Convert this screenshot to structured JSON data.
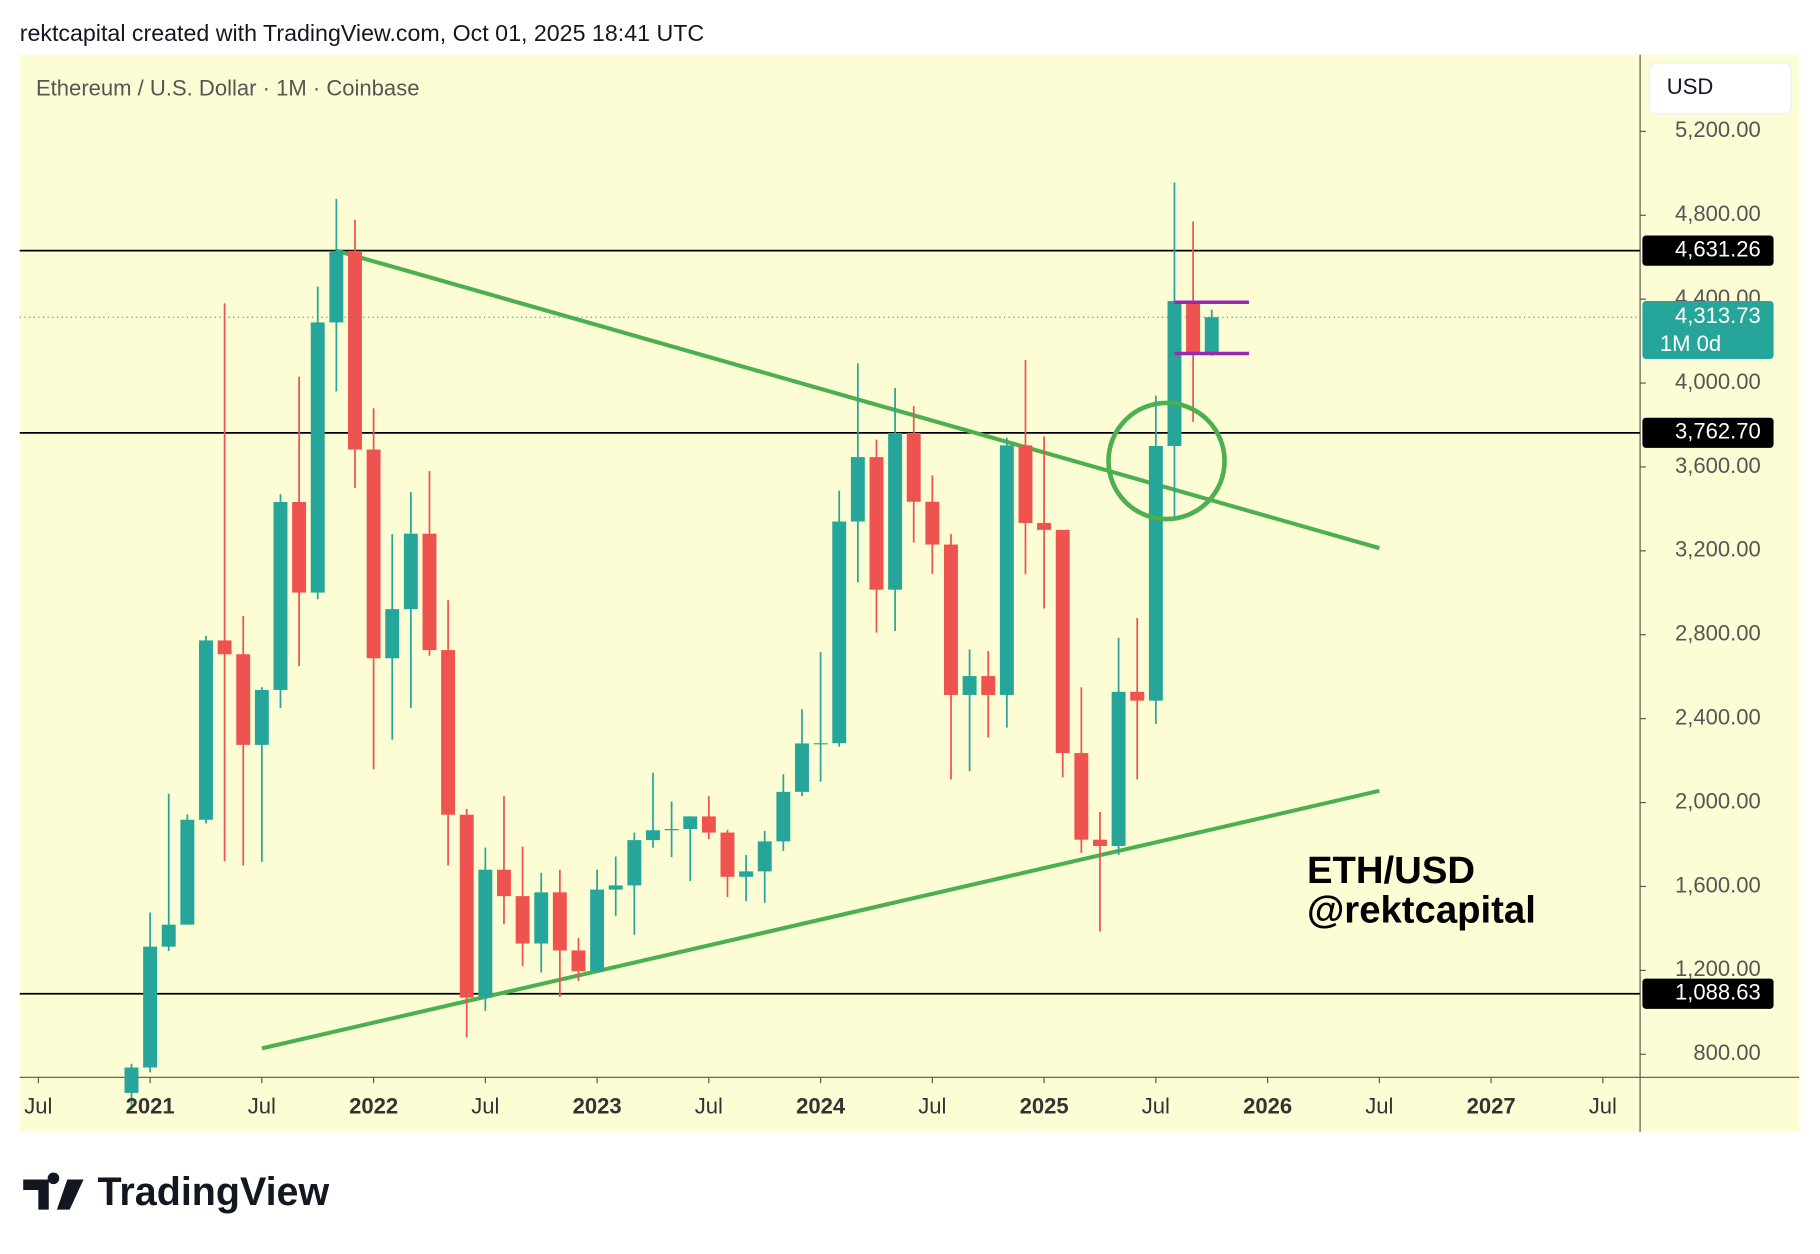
{
  "header": "rektcapital created with TradingView.com, Oct 01, 2025 18:41 UTC",
  "footer_logo": "TradingView",
  "chart_data": {
    "type": "candlestick",
    "title": "Ethereum / U.S. Dollar · 1M · Coinbase",
    "currency": "USD",
    "annotation": [
      "ETH/USD",
      "@rektcapital"
    ],
    "up_color": "#26a69a",
    "down_color": "#ef5350",
    "x": [
      "2020-12",
      "2021-01",
      "2021-02",
      "2021-03",
      "2021-04",
      "2021-05",
      "2021-06",
      "2021-07",
      "2021-08",
      "2021-09",
      "2021-10",
      "2021-11",
      "2021-12",
      "2022-01",
      "2022-02",
      "2022-03",
      "2022-04",
      "2022-05",
      "2022-06",
      "2022-07",
      "2022-08",
      "2022-09",
      "2022-10",
      "2022-11",
      "2022-12",
      "2023-01",
      "2023-02",
      "2023-03",
      "2023-04",
      "2023-05",
      "2023-06",
      "2023-07",
      "2023-08",
      "2023-09",
      "2023-10",
      "2023-11",
      "2023-12",
      "2024-01",
      "2024-02",
      "2024-03",
      "2024-04",
      "2024-05",
      "2024-06",
      "2024-07",
      "2024-08",
      "2024-09",
      "2024-10",
      "2024-11",
      "2024-12",
      "2025-01",
      "2025-02",
      "2025-03",
      "2025-04",
      "2025-05",
      "2025-06",
      "2025-07",
      "2025-08",
      "2025-09",
      "2025-10"
    ],
    "open": [
      616,
      737,
      1313,
      1418,
      1918,
      2773,
      2707,
      2275,
      2537,
      3433,
      3001,
      4289,
      4630,
      3683,
      2688,
      2922,
      3282,
      2727,
      1942,
      1070,
      1680,
      1554,
      1328,
      1572,
      1295,
      1196,
      1585,
      1605,
      1821,
      1868,
      1874,
      1934,
      1857,
      1646,
      1672,
      1815,
      2051,
      2282,
      2283,
      3340,
      3647,
      3015,
      3762,
      3434,
      3230,
      2513,
      2603,
      2513,
      3703,
      3333,
      3300,
      2236,
      1823,
      1793,
      2528,
      2486,
      3700,
      4391,
      4145
    ],
    "high": [
      755,
      1476,
      2042,
      1943,
      2795,
      4380,
      2890,
      2550,
      3470,
      4030,
      4460,
      4878,
      4778,
      3880,
      3280,
      3480,
      3580,
      2965,
      1970,
      1785,
      2030,
      1790,
      1665,
      1680,
      1354,
      1680,
      1743,
      1857,
      2142,
      2005,
      1935,
      2030,
      1870,
      1750,
      1865,
      2135,
      2445,
      2717,
      3487,
      4094,
      3730,
      3977,
      3890,
      3560,
      3280,
      2730,
      2722,
      3740,
      4110,
      3745,
      3300,
      2550,
      1955,
      2785,
      2880,
      3940,
      4956,
      4770,
      4350
    ],
    "low": [
      535,
      714,
      1293,
      1420,
      1900,
      1720,
      1700,
      1718,
      2450,
      2650,
      2970,
      3960,
      3500,
      2159,
      2300,
      2450,
      2700,
      1700,
      880,
      1007,
      1420,
      1220,
      1190,
      1073,
      1150,
      1190,
      1460,
      1370,
      1785,
      1740,
      1626,
      1826,
      1550,
      1530,
      1522,
      1770,
      2030,
      2100,
      2267,
      3050,
      2810,
      2818,
      3240,
      3090,
      2110,
      2150,
      2310,
      2357,
      3088,
      2925,
      2120,
      1760,
      1385,
      1750,
      2110,
      2375,
      3355,
      3815,
      4130
    ],
    "close": [
      737,
      1313,
      1418,
      1918,
      2773,
      2707,
      2275,
      2537,
      3433,
      3001,
      4289,
      4630,
      3683,
      2688,
      2922,
      3282,
      2727,
      1942,
      1070,
      1680,
      1554,
      1328,
      1572,
      1295,
      1196,
      1585,
      1605,
      1821,
      1868,
      1874,
      1934,
      1857,
      1646,
      1672,
      1815,
      2051,
      2282,
      2283,
      3340,
      3647,
      3015,
      3762,
      3434,
      3230,
      2513,
      2603,
      2513,
      3703,
      3333,
      3300,
      2236,
      1823,
      1793,
      2528,
      2486,
      3700,
      4391,
      4145,
      4313.73
    ],
    "xlim": [
      "2020-06",
      "2027-09"
    ],
    "xticks": [
      {
        "value": "2020-07",
        "label": "Jul"
      },
      {
        "value": "2021-01",
        "label": "2021"
      },
      {
        "value": "2021-07",
        "label": "Jul"
      },
      {
        "value": "2022-01",
        "label": "2022"
      },
      {
        "value": "2022-07",
        "label": "Jul"
      },
      {
        "value": "2023-01",
        "label": "2023"
      },
      {
        "value": "2023-07",
        "label": "Jul"
      },
      {
        "value": "2024-01",
        "label": "2024"
      },
      {
        "value": "2024-07",
        "label": "Jul"
      },
      {
        "value": "2025-01",
        "label": "2025"
      },
      {
        "value": "2025-07",
        "label": "Jul"
      },
      {
        "value": "2026-01",
        "label": "2026"
      },
      {
        "value": "2026-07",
        "label": "Jul"
      },
      {
        "value": "2027-01",
        "label": "2027"
      },
      {
        "value": "2027-07",
        "label": "Jul"
      }
    ],
    "ylim": [
      690,
      5565
    ],
    "yticks": [
      {
        "value": 800,
        "label": "800.00"
      },
      {
        "value": 1200,
        "label": "1,200.00"
      },
      {
        "value": 1600,
        "label": "1,600.00"
      },
      {
        "value": 2000,
        "label": "2,000.00"
      },
      {
        "value": 2400,
        "label": "2,400.00"
      },
      {
        "value": 2800,
        "label": "2,800.00"
      },
      {
        "value": 3200,
        "label": "3,200.00"
      },
      {
        "value": 3600,
        "label": "3,600.00"
      },
      {
        "value": 4000,
        "label": "4,000.00"
      },
      {
        "value": 4400,
        "label": "4,400.00"
      },
      {
        "value": 4800,
        "label": "4,800.00"
      },
      {
        "value": 5200,
        "label": "5,200.00"
      }
    ],
    "levels": [
      {
        "value": 4631.26,
        "label": "4,631.26"
      },
      {
        "value": 3762.7,
        "label": "3,762.70"
      },
      {
        "value": 1088.63,
        "label": "1,088.63"
      }
    ],
    "last_price": {
      "label": "4,313.73",
      "countdown": "1M 0d"
    },
    "trendlines": [
      {
        "x": [
          "2021-11",
          "2026-07"
        ],
        "y": [
          4631,
          3213
        ],
        "color": "#4caf50"
      },
      {
        "x": [
          "2021-07",
          "2026-07"
        ],
        "y": [
          828,
          2056
        ],
        "color": "#4caf50"
      }
    ],
    "range_box": {
      "x": [
        "2025-08",
        "2025-12"
      ],
      "y": [
        4385,
        4141
      ],
      "color": "#9c27b0"
    }
  }
}
